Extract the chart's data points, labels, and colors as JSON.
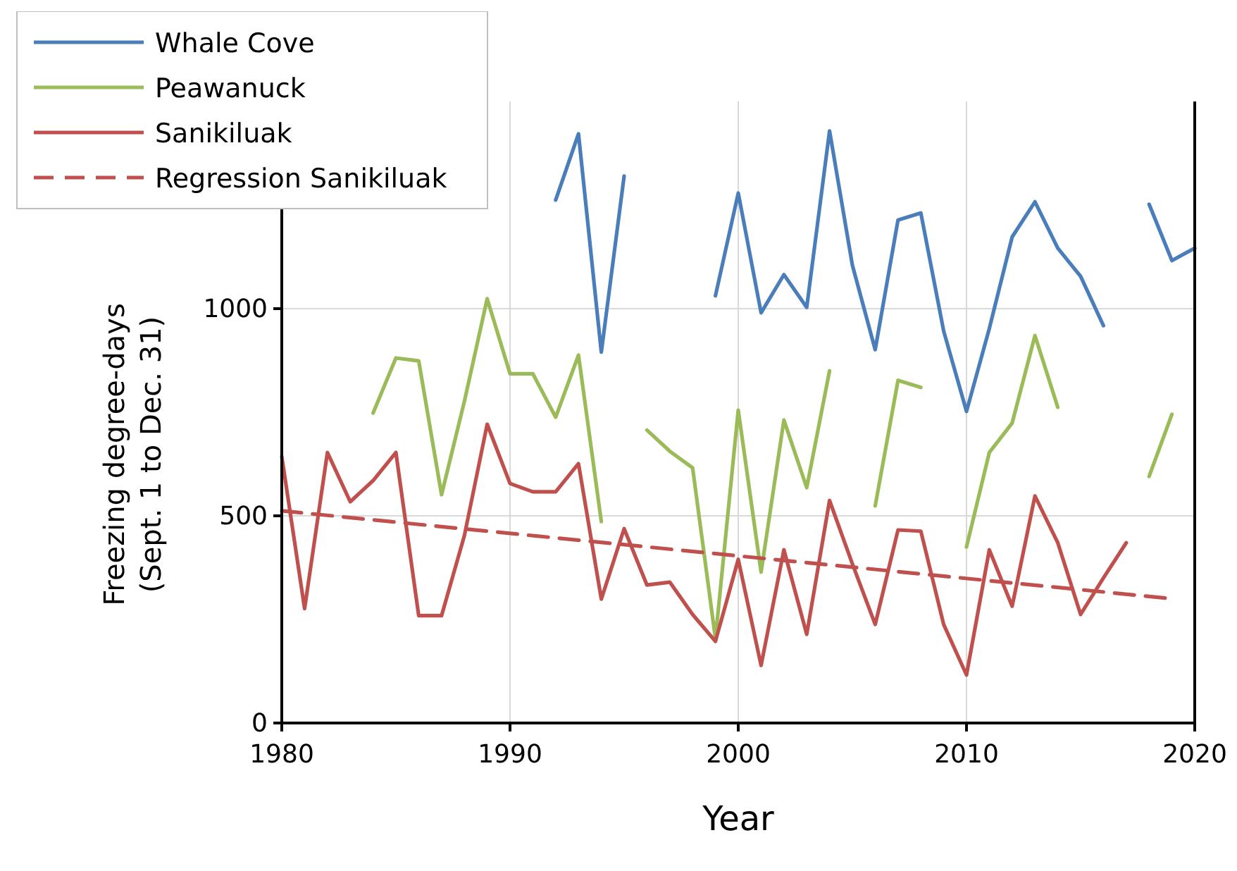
{
  "chart_data": {
    "type": "line",
    "xlabel": "Year",
    "ylabel": "Freezing degree-days\n(Sept. 1 to Dec. 31)",
    "x": [
      1980,
      1981,
      1982,
      1983,
      1984,
      1985,
      1986,
      1987,
      1988,
      1989,
      1990,
      1991,
      1992,
      1993,
      1994,
      1995,
      1996,
      1997,
      1998,
      1999,
      2000,
      2001,
      2002,
      2003,
      2004,
      2005,
      2006,
      2007,
      2008,
      2009,
      2010,
      2011,
      2012,
      2013,
      2014,
      2015,
      2016,
      2017,
      2018,
      2019,
      2020
    ],
    "series": [
      {
        "name": "Whale Cove",
        "color": "#4a7ebb",
        "values": [
          null,
          null,
          null,
          null,
          null,
          null,
          null,
          null,
          null,
          null,
          null,
          null,
          1262,
          1422,
          895,
          1320,
          null,
          null,
          null,
          1031,
          1279,
          990,
          1082,
          1003,
          1429,
          1105,
          901,
          1214,
          1231,
          946,
          752,
          952,
          1173,
          1258,
          1146,
          1078,
          959,
          null,
          1252,
          1116,
          1146
        ]
      },
      {
        "name": "Peawanuck",
        "color": "#9bbb59",
        "values": [
          null,
          null,
          null,
          null,
          748,
          881,
          874,
          551,
          776,
          1024,
          843,
          843,
          738,
          888,
          486,
          null,
          707,
          656,
          616,
          204,
          755,
          364,
          731,
          568,
          850,
          null,
          524,
          827,
          810,
          null,
          425,
          653,
          724,
          935,
          762,
          null,
          null,
          null,
          595,
          745,
          null
        ]
      },
      {
        "name": "Sanikiluak",
        "color": "#c0504d",
        "values": [
          643,
          276,
          653,
          534,
          585,
          653,
          259,
          259,
          452,
          721,
          578,
          558,
          558,
          626,
          299,
          469,
          333,
          340,
          262,
          197,
          395,
          139,
          418,
          214,
          537,
          384,
          238,
          466,
          463,
          238,
          116,
          418,
          282,
          548,
          435,
          262,
          350,
          435,
          null,
          null,
          null
        ]
      },
      {
        "name": "Regression Sanikiluak",
        "color": "#c0504d",
        "line_style": "dashed",
        "x": [
          1980,
          2019
        ],
        "values": [
          512,
          300
        ]
      }
    ],
    "xlim": [
      1980,
      2020
    ],
    "ylim": [
      0,
      1500
    ],
    "xticks": [
      1980,
      1990,
      2000,
      2010,
      2020
    ],
    "yticks": [
      0,
      500,
      1000
    ],
    "grid": true,
    "legend": "top left"
  }
}
